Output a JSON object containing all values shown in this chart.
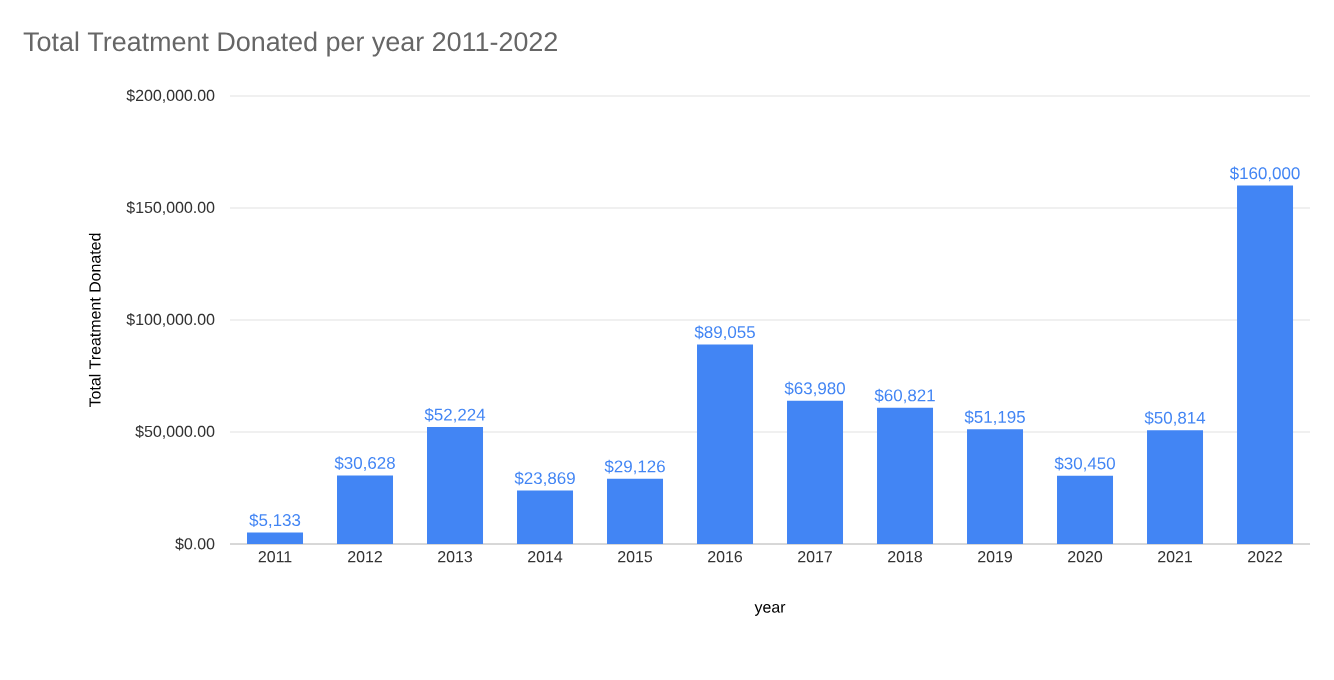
{
  "chart_data": {
    "type": "bar",
    "title": "Total Treatment Donated per year 2011-2022",
    "xlabel": "year",
    "ylabel": "Total Treatment Donated",
    "categories": [
      "2011",
      "2012",
      "2013",
      "2014",
      "2015",
      "2016",
      "2017",
      "2018",
      "2019",
      "2020",
      "2021",
      "2022"
    ],
    "values": [
      5133,
      30628,
      52224,
      23869,
      29126,
      89055,
      63980,
      60821,
      51195,
      30450,
      50814,
      160000
    ],
    "value_labels": [
      "$5,133",
      "$30,628",
      "$52,224",
      "$23,869",
      "$29,126",
      "$89,055",
      "$63,980",
      "$60,821",
      "$51,195",
      "$30,450",
      "$50,814",
      "$160,000"
    ],
    "color": "#4285f4",
    "ylim": [
      0,
      200000
    ],
    "yticks": [
      {
        "value": 0,
        "label": "$0.00"
      },
      {
        "value": 50000,
        "label": "$50,000.00"
      },
      {
        "value": 100000,
        "label": "$100,000.00"
      },
      {
        "value": 150000,
        "label": "$150,000.00"
      },
      {
        "value": 200000,
        "label": "$200,000.00"
      }
    ],
    "grid": "y"
  }
}
